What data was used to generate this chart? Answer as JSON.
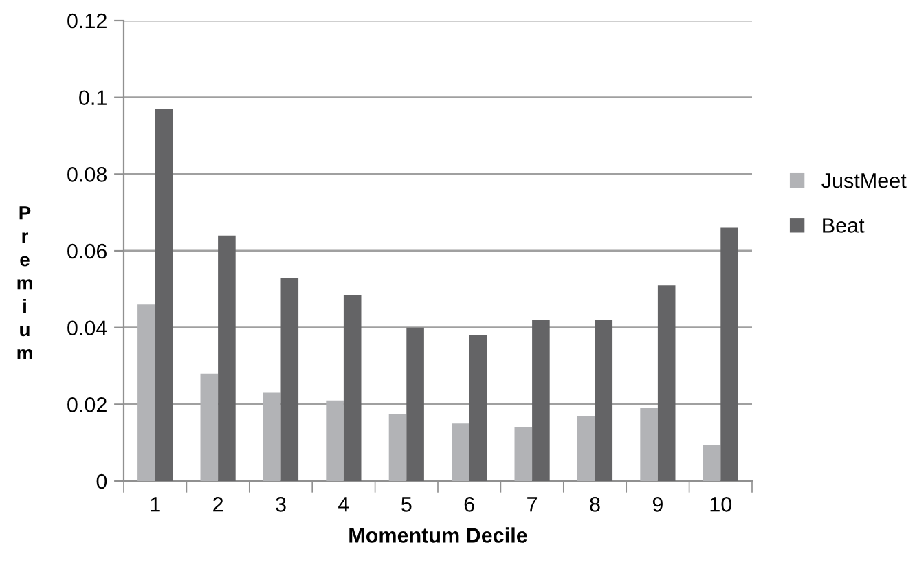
{
  "chart_data": {
    "type": "bar",
    "xlabel": "Momentum Decile",
    "ylabel": "Premium",
    "categories": [
      "1",
      "2",
      "3",
      "4",
      "5",
      "6",
      "7",
      "8",
      "9",
      "10"
    ],
    "series": [
      {
        "name": "JustMeet",
        "color": "#b2b3b6",
        "values": [
          0.046,
          0.028,
          0.023,
          0.021,
          0.0175,
          0.015,
          0.014,
          0.017,
          0.019,
          0.0095
        ]
      },
      {
        "name": "Beat",
        "color": "#646466",
        "values": [
          0.097,
          0.064,
          0.053,
          0.0485,
          0.04,
          0.038,
          0.042,
          0.042,
          0.051,
          0.066
        ]
      }
    ],
    "ylim": [
      0,
      0.12
    ],
    "yticks": [
      0,
      0.02,
      0.04,
      0.06,
      0.08,
      0.1,
      0.12
    ],
    "grid": "y",
    "legend": "right"
  }
}
